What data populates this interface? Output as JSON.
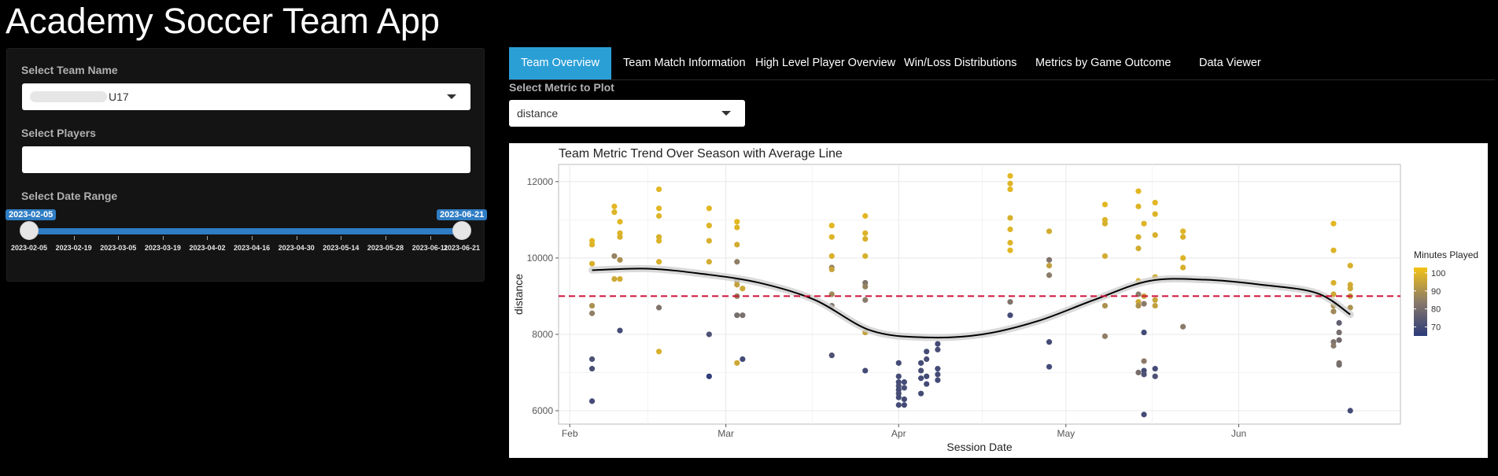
{
  "app": {
    "title": "Academy Soccer Team App"
  },
  "sidebar": {
    "team": {
      "label": "Select Team Name",
      "value": "U17"
    },
    "players": {
      "label": "Select Players",
      "value": ""
    },
    "date_range": {
      "label": "Select Date Range",
      "from": "2023-02-05",
      "to": "2023-06-21",
      "ticks": [
        "2023-02-05",
        "2023-02-19",
        "2023-03-05",
        "2023-03-19",
        "2023-04-02",
        "2023-04-16",
        "2023-04-30",
        "2023-05-14",
        "2023-05-28",
        "2023-06-11",
        "2023-06-21"
      ]
    }
  },
  "tabs": [
    {
      "label": "Team Overview",
      "active": true
    },
    {
      "label": "Team Match Information",
      "active": false
    },
    {
      "label": "High Level Player Overview",
      "active": false
    },
    {
      "label": "Win/Loss Distributions",
      "active": false
    },
    {
      "label": "Metrics by Game Outcome",
      "active": false
    },
    {
      "label": "Data Viewer",
      "active": false
    }
  ],
  "metric": {
    "label": "Select Metric to Plot",
    "value": "distance"
  },
  "colors": {
    "accent": "#2a9fd6",
    "slider": "#2f7dc4",
    "avg_line": "#d0103a",
    "scale_high": "#f3c316",
    "scale_mid": "#8a7a6a",
    "scale_low": "#2b3a7a"
  },
  "chart_data": {
    "type": "scatter",
    "title": "Team Metric Trend Over Season with Average Line",
    "xlabel": "Session Date",
    "ylabel": "distance",
    "xlim": [
      "2023-01-30",
      "2023-06-30"
    ],
    "ylim": [
      5650,
      12450
    ],
    "x_ticks": [
      [
        "2023-02-01",
        "Feb"
      ],
      [
        "2023-03-01",
        "Mar"
      ],
      [
        "2023-04-01",
        "Apr"
      ],
      [
        "2023-05-01",
        "May"
      ],
      [
        "2023-06-01",
        "Jun"
      ]
    ],
    "y_ticks": [
      6000,
      8000,
      10000,
      12000
    ],
    "grid": true,
    "average_line": 9000,
    "legend": {
      "title": "Minutes Played",
      "ticks": [
        100,
        90,
        80,
        70
      ],
      "range": [
        65,
        103
      ],
      "placement": "right"
    },
    "trend": [
      [
        "2023-02-05",
        9680
      ],
      [
        "2023-02-15",
        9720
      ],
      [
        "2023-02-25",
        9580
      ],
      [
        "2023-03-07",
        9350
      ],
      [
        "2023-03-17",
        8900
      ],
      [
        "2023-03-27",
        8100
      ],
      [
        "2023-04-06",
        7920
      ],
      [
        "2023-04-16",
        8000
      ],
      [
        "2023-04-26",
        8350
      ],
      [
        "2023-05-06",
        8900
      ],
      [
        "2023-05-16",
        9400
      ],
      [
        "2023-05-26",
        9430
      ],
      [
        "2023-06-05",
        9300
      ],
      [
        "2023-06-15",
        9080
      ],
      [
        "2023-06-21",
        8520
      ]
    ],
    "points": [
      [
        "2023-02-05",
        10450,
        100
      ],
      [
        "2023-02-05",
        10350,
        99
      ],
      [
        "2023-02-05",
        9850,
        98
      ],
      [
        "2023-02-05",
        8750,
        90
      ],
      [
        "2023-02-05",
        8550,
        85
      ],
      [
        "2023-02-05",
        7350,
        72
      ],
      [
        "2023-02-05",
        7100,
        71
      ],
      [
        "2023-02-05",
        6250,
        70
      ],
      [
        "2023-02-09",
        11350,
        100
      ],
      [
        "2023-02-09",
        11200,
        99
      ],
      [
        "2023-02-09",
        10050,
        86
      ],
      [
        "2023-02-09",
        9450,
        96
      ],
      [
        "2023-02-10",
        10950,
        100
      ],
      [
        "2023-02-10",
        10650,
        99
      ],
      [
        "2023-02-10",
        10550,
        98
      ],
      [
        "2023-02-10",
        9950,
        90
      ],
      [
        "2023-02-10",
        9450,
        97
      ],
      [
        "2023-02-10",
        8100,
        70
      ],
      [
        "2023-02-17",
        11800,
        100
      ],
      [
        "2023-02-17",
        11300,
        100
      ],
      [
        "2023-02-17",
        11100,
        99
      ],
      [
        "2023-02-17",
        10550,
        98
      ],
      [
        "2023-02-17",
        10450,
        99
      ],
      [
        "2023-02-17",
        9900,
        98
      ],
      [
        "2023-02-17",
        8700,
        82
      ],
      [
        "2023-02-17",
        7550,
        98
      ],
      [
        "2023-02-26",
        11300,
        100
      ],
      [
        "2023-02-26",
        10850,
        99
      ],
      [
        "2023-02-26",
        10450,
        98
      ],
      [
        "2023-02-26",
        9900,
        97
      ],
      [
        "2023-02-26",
        8000,
        72
      ],
      [
        "2023-02-26",
        6900,
        66
      ],
      [
        "2023-03-03",
        10950,
        100
      ],
      [
        "2023-03-03",
        10800,
        99
      ],
      [
        "2023-03-03",
        10350,
        97
      ],
      [
        "2023-03-03",
        9900,
        85
      ],
      [
        "2023-03-03",
        9400,
        88
      ],
      [
        "2023-03-03",
        9300,
        94
      ],
      [
        "2023-03-04",
        9200,
        96
      ],
      [
        "2023-03-03",
        9000,
        86
      ],
      [
        "2023-03-03",
        8500,
        80
      ],
      [
        "2023-03-04",
        8500,
        81
      ],
      [
        "2023-03-03",
        7250,
        96
      ],
      [
        "2023-03-04",
        7350,
        70
      ],
      [
        "2023-03-20",
        10850,
        100
      ],
      [
        "2023-03-20",
        10550,
        99
      ],
      [
        "2023-03-20",
        10050,
        98
      ],
      [
        "2023-03-20",
        9750,
        86
      ],
      [
        "2023-03-20",
        9700,
        95
      ],
      [
        "2023-03-20",
        9050,
        88
      ],
      [
        "2023-03-20",
        8750,
        82
      ],
      [
        "2023-03-20",
        7450,
        72
      ],
      [
        "2023-03-26",
        11100,
        100
      ],
      [
        "2023-03-26",
        10650,
        99
      ],
      [
        "2023-03-26",
        10500,
        98
      ],
      [
        "2023-03-26",
        10050,
        98
      ],
      [
        "2023-03-26",
        9350,
        82
      ],
      [
        "2023-03-26",
        9250,
        86
      ],
      [
        "2023-03-26",
        8900,
        84
      ],
      [
        "2023-03-26",
        8050,
        94
      ],
      [
        "2023-03-26",
        7050,
        70
      ],
      [
        "2023-04-01",
        7250,
        70
      ],
      [
        "2023-04-01",
        6900,
        70
      ],
      [
        "2023-04-01",
        6750,
        70
      ],
      [
        "2023-04-01",
        6650,
        71
      ],
      [
        "2023-04-01",
        6550,
        70
      ],
      [
        "2023-04-01",
        6450,
        71
      ],
      [
        "2023-04-01",
        6350,
        70
      ],
      [
        "2023-04-01",
        6150,
        70
      ],
      [
        "2023-04-02",
        6750,
        70
      ],
      [
        "2023-04-02",
        6600,
        71
      ],
      [
        "2023-04-02",
        6300,
        70
      ],
      [
        "2023-04-02",
        6150,
        70
      ],
      [
        "2023-04-05",
        7250,
        70
      ],
      [
        "2023-04-05",
        7050,
        71
      ],
      [
        "2023-04-05",
        6850,
        70
      ],
      [
        "2023-04-05",
        6450,
        70
      ],
      [
        "2023-04-06",
        7550,
        70
      ],
      [
        "2023-04-06",
        7350,
        71
      ],
      [
        "2023-04-06",
        6900,
        70
      ],
      [
        "2023-04-06",
        6700,
        70
      ],
      [
        "2023-04-08",
        7750,
        70
      ],
      [
        "2023-04-08",
        7600,
        71
      ],
      [
        "2023-04-08",
        7100,
        70
      ],
      [
        "2023-04-08",
        6950,
        70
      ],
      [
        "2023-04-08",
        6800,
        70
      ],
      [
        "2023-04-21",
        12150,
        100
      ],
      [
        "2023-04-21",
        11950,
        99
      ],
      [
        "2023-04-21",
        11800,
        100
      ],
      [
        "2023-04-21",
        11050,
        98
      ],
      [
        "2023-04-21",
        10750,
        99
      ],
      [
        "2023-04-21",
        10400,
        99
      ],
      [
        "2023-04-21",
        10200,
        100
      ],
      [
        "2023-04-21",
        8850,
        82
      ],
      [
        "2023-04-21",
        8500,
        70
      ],
      [
        "2023-04-28",
        10700,
        97
      ],
      [
        "2023-04-28",
        9950,
        82
      ],
      [
        "2023-04-28",
        9800,
        94
      ],
      [
        "2023-04-28",
        9550,
        84
      ],
      [
        "2023-04-28",
        7800,
        70
      ],
      [
        "2023-04-28",
        7150,
        70
      ],
      [
        "2023-05-08",
        11400,
        100
      ],
      [
        "2023-05-08",
        11000,
        99
      ],
      [
        "2023-05-08",
        10900,
        98
      ],
      [
        "2023-05-08",
        10050,
        97
      ],
      [
        "2023-05-08",
        8750,
        90
      ],
      [
        "2023-05-08",
        7950,
        85
      ],
      [
        "2023-05-14",
        11750,
        100
      ],
      [
        "2023-05-14",
        11350,
        99
      ],
      [
        "2023-05-14",
        10550,
        98
      ],
      [
        "2023-05-14",
        10250,
        97
      ],
      [
        "2023-05-14",
        9400,
        98
      ],
      [
        "2023-05-14",
        9050,
        84
      ],
      [
        "2023-05-14",
        8850,
        96
      ],
      [
        "2023-05-14",
        8750,
        90
      ],
      [
        "2023-05-14",
        7000,
        80
      ],
      [
        "2023-05-15",
        10900,
        99
      ],
      [
        "2023-05-15",
        9000,
        95
      ],
      [
        "2023-05-15",
        8800,
        84
      ],
      [
        "2023-05-15",
        8050,
        70
      ],
      [
        "2023-05-15",
        7300,
        84
      ],
      [
        "2023-05-15",
        7050,
        70
      ],
      [
        "2023-05-15",
        6950,
        72
      ],
      [
        "2023-05-15",
        5900,
        70
      ],
      [
        "2023-05-17",
        11450,
        100
      ],
      [
        "2023-05-17",
        11150,
        99
      ],
      [
        "2023-05-17",
        10600,
        98
      ],
      [
        "2023-05-17",
        9500,
        97
      ],
      [
        "2023-05-17",
        8900,
        95
      ],
      [
        "2023-05-17",
        8750,
        94
      ],
      [
        "2023-05-17",
        7100,
        70
      ],
      [
        "2023-05-17",
        6900,
        72
      ],
      [
        "2023-05-22",
        10700,
        99
      ],
      [
        "2023-05-22",
        10550,
        98
      ],
      [
        "2023-05-22",
        10000,
        99
      ],
      [
        "2023-05-22",
        9750,
        98
      ],
      [
        "2023-05-22",
        8200,
        84
      ],
      [
        "2023-06-18",
        10900,
        100
      ],
      [
        "2023-06-18",
        10200,
        99
      ],
      [
        "2023-06-18",
        9350,
        98
      ],
      [
        "2023-06-18",
        9050,
        96
      ],
      [
        "2023-06-18",
        8750,
        90
      ],
      [
        "2023-06-18",
        8600,
        88
      ],
      [
        "2023-06-18",
        7800,
        82
      ],
      [
        "2023-06-18",
        7700,
        84
      ],
      [
        "2023-06-19",
        8300,
        76
      ],
      [
        "2023-06-19",
        8050,
        80
      ],
      [
        "2023-06-19",
        7850,
        79
      ],
      [
        "2023-06-19",
        7250,
        82
      ],
      [
        "2023-06-19",
        7200,
        80
      ],
      [
        "2023-06-21",
        9800,
        98
      ],
      [
        "2023-06-21",
        9300,
        97
      ],
      [
        "2023-06-21",
        9200,
        96
      ],
      [
        "2023-06-21",
        9000,
        94
      ],
      [
        "2023-06-21",
        8700,
        90
      ],
      [
        "2023-06-21",
        6000,
        70
      ]
    ]
  }
}
